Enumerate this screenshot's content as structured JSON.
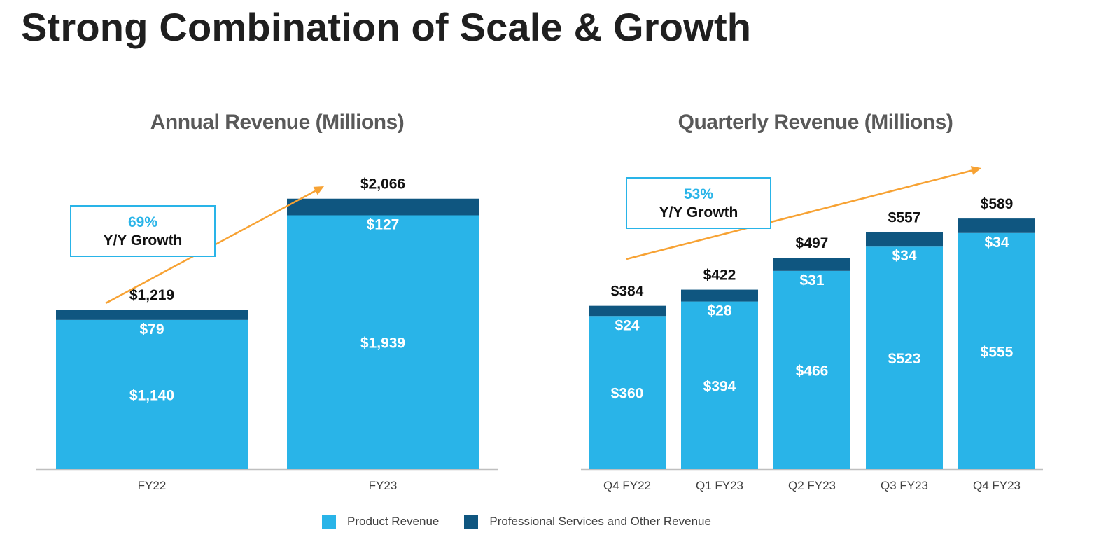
{
  "page": {
    "title": "Strong Combination of Scale & Growth"
  },
  "colors": {
    "product": "#29b4e8",
    "services": "#0f5680",
    "arrow": "#f7a233",
    "axis": "#bfbfbf"
  },
  "legend": {
    "product_label": "Product Revenue",
    "services_label": "Professional Services and Other Revenue"
  },
  "chart_data": [
    {
      "type": "bar",
      "stacked": true,
      "title": "Annual Revenue (Millions)",
      "categories": [
        "FY22",
        "FY23"
      ],
      "series": [
        {
          "name": "Product Revenue",
          "values": [
            1140,
            1939
          ],
          "labels": [
            "$1,140",
            "$1,939"
          ]
        },
        {
          "name": "Professional Services and Other Revenue",
          "values": [
            79,
            127
          ],
          "labels": [
            "$79",
            "$127"
          ]
        }
      ],
      "totals": [
        1219,
        2066
      ],
      "total_labels": [
        "$1,219",
        "$2,066"
      ],
      "growth": {
        "percent": "69%",
        "label": "Y/Y Growth"
      },
      "ylim": [
        0,
        2300
      ],
      "grid": false,
      "legend": "bottom"
    },
    {
      "type": "bar",
      "stacked": true,
      "title": "Quarterly Revenue (Millions)",
      "categories": [
        "Q4 FY22",
        "Q1 FY23",
        "Q2 FY23",
        "Q3 FY23",
        "Q4 FY23"
      ],
      "series": [
        {
          "name": "Product Revenue",
          "values": [
            360,
            394,
            466,
            523,
            555
          ],
          "labels": [
            "$360",
            "$394",
            "$466",
            "$523",
            "$555"
          ]
        },
        {
          "name": "Professional Services and Other Revenue",
          "values": [
            24,
            28,
            31,
            34,
            34
          ],
          "labels": [
            "$24",
            "$28",
            "$31",
            "$34",
            "$34"
          ]
        }
      ],
      "totals": [
        384,
        422,
        497,
        557,
        589
      ],
      "total_labels": [
        "$384",
        "$422",
        "$497",
        "$557",
        "$589"
      ],
      "growth": {
        "percent": "53%",
        "label": "Y/Y Growth"
      },
      "ylim": [
        0,
        655
      ],
      "grid": false,
      "legend": "bottom"
    }
  ]
}
